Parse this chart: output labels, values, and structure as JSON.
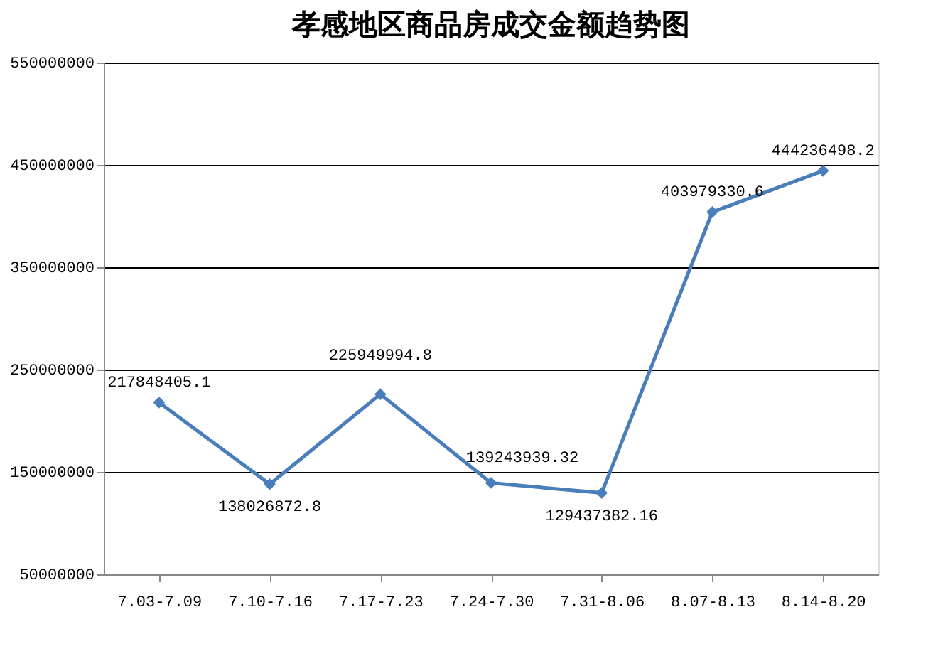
{
  "chart_data": {
    "type": "line",
    "title": "孝感地区商品房成交金额趋势图",
    "categories": [
      "7.03-7.09",
      "7.10-7.16",
      "7.17-7.23",
      "7.24-7.30",
      "7.31-8.06",
      "8.07-8.13",
      "8.14-8.20"
    ],
    "series": [
      {
        "color": "#4a7ebb",
        "values": [
          217848405.1,
          138026872.8,
          225949994.8,
          139243939.32,
          129437382.16,
          403979330.6,
          444236498.2
        ]
      }
    ],
    "ylim": [
      50000000,
      550000000
    ],
    "yticks": [
      50000000,
      150000000,
      250000000,
      350000000,
      450000000,
      550000000
    ],
    "grid": "y",
    "marker": "diamond",
    "line_style": "solid",
    "data_labels": true,
    "legend": false
  }
}
